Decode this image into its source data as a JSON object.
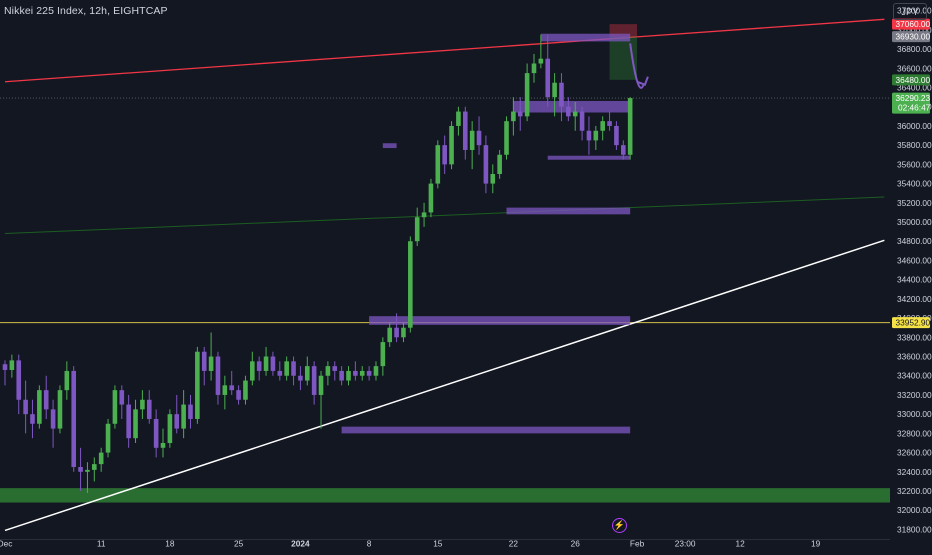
{
  "header": {
    "symbol_title": "Nikkei 225 Index, 12h, EIGHTCAP",
    "currency": "JPY"
  },
  "icons": {
    "replay": "lightning-bolt-icon"
  },
  "colors": {
    "background": "#131722",
    "up": "#4caf50",
    "down": "#7e57c2",
    "zone": "#7e57c2",
    "support": "#2e7d32",
    "red_line": "#f23645",
    "green_line": "#1b5e20",
    "white_line": "#ffffff",
    "hline": "#d4c04a"
  },
  "chart_data": {
    "type": "candlestick",
    "y_axis": {
      "min": 31700,
      "max": 37300,
      "ticks": [
        37200,
        37000,
        36800,
        36600,
        36400,
        36200,
        36000,
        35800,
        35600,
        35400,
        35200,
        35000,
        34800,
        34600,
        34400,
        34200,
        34000,
        33800,
        33600,
        33400,
        33200,
        33000,
        32800,
        32600,
        32400,
        32200,
        32000,
        31800
      ]
    },
    "x_axis": {
      "labels": [
        {
          "label": "Dec",
          "bar": 0
        },
        {
          "label": "11",
          "bar": 14
        },
        {
          "label": "18",
          "bar": 24
        },
        {
          "label": "25",
          "bar": 34
        },
        {
          "label": "2024",
          "bar": 43
        },
        {
          "label": "8",
          "bar": 53
        },
        {
          "label": "15",
          "bar": 63
        },
        {
          "label": "22",
          "bar": 74
        },
        {
          "label": "26",
          "bar": 83
        },
        {
          "label": "Feb",
          "bar": 92
        },
        {
          "label": "23:00",
          "bar": 99
        },
        {
          "label": "12",
          "bar": 107
        },
        {
          "label": "19",
          "bar": 118
        }
      ],
      "total_bars": 128
    },
    "price_labels": [
      {
        "text": "37060.00",
        "value": 37060,
        "bg": "#f23645",
        "fg": "#ffffff"
      },
      {
        "text": "36930.00",
        "value": 36930,
        "bg": "#787b86",
        "fg": "#ffffff"
      },
      {
        "text": "36480.00",
        "value": 36480,
        "bg": "#2e7d32",
        "fg": "#ffffff"
      },
      {
        "text": "36290.23",
        "sub": "02:46:47",
        "value": 36290.23,
        "bg": "#4caf50",
        "fg": "#ffffff"
      },
      {
        "text": "33952.90",
        "value": 33952.9,
        "bg": "#f4e047",
        "fg": "#131722"
      }
    ],
    "candles": [
      [
        33520,
        33560,
        33300,
        33460
      ],
      [
        33460,
        33620,
        33380,
        33560
      ],
      [
        33560,
        33620,
        33000,
        33150
      ],
      [
        33150,
        33350,
        32800,
        33000
      ],
      [
        33000,
        33150,
        32750,
        32900
      ],
      [
        32900,
        33300,
        32850,
        33250
      ],
      [
        33250,
        33400,
        32950,
        33050
      ],
      [
        33050,
        33150,
        32650,
        32850
      ],
      [
        32850,
        33300,
        32800,
        33250
      ],
      [
        33250,
        33550,
        33150,
        33450
      ],
      [
        33450,
        33500,
        32400,
        32450
      ],
      [
        32450,
        32650,
        32200,
        32400
      ],
      [
        32400,
        32500,
        32180,
        32420
      ],
      [
        32420,
        32550,
        32300,
        32480
      ],
      [
        32480,
        32650,
        32400,
        32600
      ],
      [
        32600,
        32950,
        32550,
        32900
      ],
      [
        32900,
        33300,
        32850,
        33250
      ],
      [
        33250,
        33300,
        32950,
        33100
      ],
      [
        33100,
        33200,
        32650,
        32750
      ],
      [
        32750,
        33150,
        32700,
        33050
      ],
      [
        33050,
        33250,
        32950,
        33150
      ],
      [
        33150,
        33250,
        32900,
        32950
      ],
      [
        32950,
        33050,
        32550,
        32650
      ],
      [
        32650,
        32850,
        32550,
        32700
      ],
      [
        32700,
        33050,
        32650,
        33000
      ],
      [
        33000,
        33200,
        32800,
        32850
      ],
      [
        32850,
        33250,
        32750,
        33100
      ],
      [
        33100,
        33200,
        32850,
        32950
      ],
      [
        32950,
        33700,
        32900,
        33650
      ],
      [
        33650,
        33700,
        33300,
        33450
      ],
      [
        33450,
        33850,
        33350,
        33600
      ],
      [
        33600,
        33650,
        33100,
        33200
      ],
      [
        33200,
        33400,
        33050,
        33300
      ],
      [
        33300,
        33450,
        33200,
        33250
      ],
      [
        33250,
        33300,
        33100,
        33150
      ],
      [
        33150,
        33400,
        33100,
        33350
      ],
      [
        33350,
        33650,
        33300,
        33550
      ],
      [
        33550,
        33600,
        33350,
        33450
      ],
      [
        33450,
        33700,
        33400,
        33600
      ],
      [
        33600,
        33650,
        33400,
        33450
      ],
      [
        33450,
        33550,
        33350,
        33400
      ],
      [
        33400,
        33600,
        33350,
        33550
      ],
      [
        33550,
        33600,
        33300,
        33400
      ],
      [
        33400,
        33500,
        33250,
        33350
      ],
      [
        33350,
        33600,
        33300,
        33500
      ],
      [
        33500,
        33550,
        33100,
        33200
      ],
      [
        33200,
        33450,
        32850,
        33400
      ],
      [
        33400,
        33550,
        33300,
        33500
      ],
      [
        33500,
        33550,
        33350,
        33450
      ],
      [
        33450,
        33500,
        33300,
        33350
      ],
      [
        33350,
        33500,
        33300,
        33450
      ],
      [
        33450,
        33550,
        33350,
        33400
      ],
      [
        33400,
        33500,
        33350,
        33450
      ],
      [
        33450,
        33500,
        33350,
        33400
      ],
      [
        33400,
        33550,
        33350,
        33500
      ],
      [
        33500,
        33800,
        33400,
        33750
      ],
      [
        33750,
        33950,
        33700,
        33900
      ],
      [
        33900,
        34050,
        33750,
        33800
      ],
      [
        33800,
        33950,
        33750,
        33900
      ],
      [
        33900,
        34850,
        33850,
        34800
      ],
      [
        34800,
        35150,
        34750,
        35050
      ],
      [
        35050,
        35200,
        34950,
        35100
      ],
      [
        35100,
        35450,
        35050,
        35400
      ],
      [
        35400,
        35850,
        35350,
        35800
      ],
      [
        35800,
        35900,
        35500,
        35600
      ],
      [
        35600,
        36050,
        35550,
        36000
      ],
      [
        36000,
        36200,
        35900,
        36150
      ],
      [
        36150,
        36200,
        35650,
        35750
      ],
      [
        35750,
        36050,
        35550,
        35950
      ],
      [
        35950,
        36100,
        35700,
        35800
      ],
      [
        35800,
        35900,
        35300,
        35400
      ],
      [
        35400,
        35600,
        35300,
        35500
      ],
      [
        35500,
        35750,
        35450,
        35700
      ],
      [
        35700,
        36100,
        35650,
        36050
      ],
      [
        36050,
        36300,
        35900,
        36150
      ],
      [
        36150,
        36300,
        35950,
        36100
      ],
      [
        36100,
        36650,
        36050,
        36550
      ],
      [
        36550,
        36750,
        36450,
        36650
      ],
      [
        36650,
        36950,
        36600,
        36700
      ],
      [
        36700,
        36950,
        36200,
        36300
      ],
      [
        36300,
        36550,
        36100,
        36450
      ],
      [
        36450,
        36550,
        36050,
        36200
      ],
      [
        36200,
        36300,
        36050,
        36100
      ],
      [
        36100,
        36250,
        35950,
        36150
      ],
      [
        36150,
        36200,
        35850,
        35950
      ],
      [
        35950,
        36100,
        35700,
        35850
      ],
      [
        35850,
        36000,
        35750,
        35950
      ],
      [
        35950,
        36100,
        35850,
        36050
      ],
      [
        36050,
        36150,
        35950,
        36000
      ],
      [
        36000,
        36050,
        35750,
        35800
      ],
      [
        35800,
        35850,
        35650,
        35700
      ],
      [
        35700,
        36300,
        35650,
        36290
      ]
    ],
    "zones": [
      {
        "x0": 78,
        "x1": 91,
        "y0": 36960,
        "y1": 36880
      },
      {
        "x0": 74,
        "x1": 91,
        "y0": 36260,
        "y1": 36140
      },
      {
        "x0": 55,
        "x1": 57,
        "y0": 35820,
        "y1": 35770
      },
      {
        "x0": 79,
        "x1": 91,
        "y0": 35690,
        "y1": 35650
      },
      {
        "x0": 73,
        "x1": 91,
        "y0": 35150,
        "y1": 35080
      },
      {
        "x0": 53,
        "x1": 91,
        "y0": 34020,
        "y1": 33930
      },
      {
        "x0": 49,
        "x1": 91,
        "y0": 32870,
        "y1": 32800
      }
    ],
    "support_band": {
      "y0": 32230,
      "y1": 32080
    },
    "target_box": {
      "x0": 88,
      "x1": 92,
      "y0": 37060,
      "y1": 36480,
      "entry": 36930
    },
    "lines": {
      "red_channel": [
        [
          0,
          36460
        ],
        [
          128,
          37110
        ]
      ],
      "red_upper": [
        [
          0,
          38200
        ],
        [
          96,
          37340
        ]
      ],
      "green_line": [
        [
          0,
          34880
        ],
        [
          128,
          35260
        ]
      ],
      "white_trend": [
        [
          0,
          31790
        ],
        [
          128,
          34810
        ]
      ],
      "hline_yellow": 33952.9,
      "hline_grey": 36290.23
    },
    "arrow": {
      "x0": 91,
      "x1": 93,
      "y0": 36860,
      "y1": 36440
    }
  }
}
